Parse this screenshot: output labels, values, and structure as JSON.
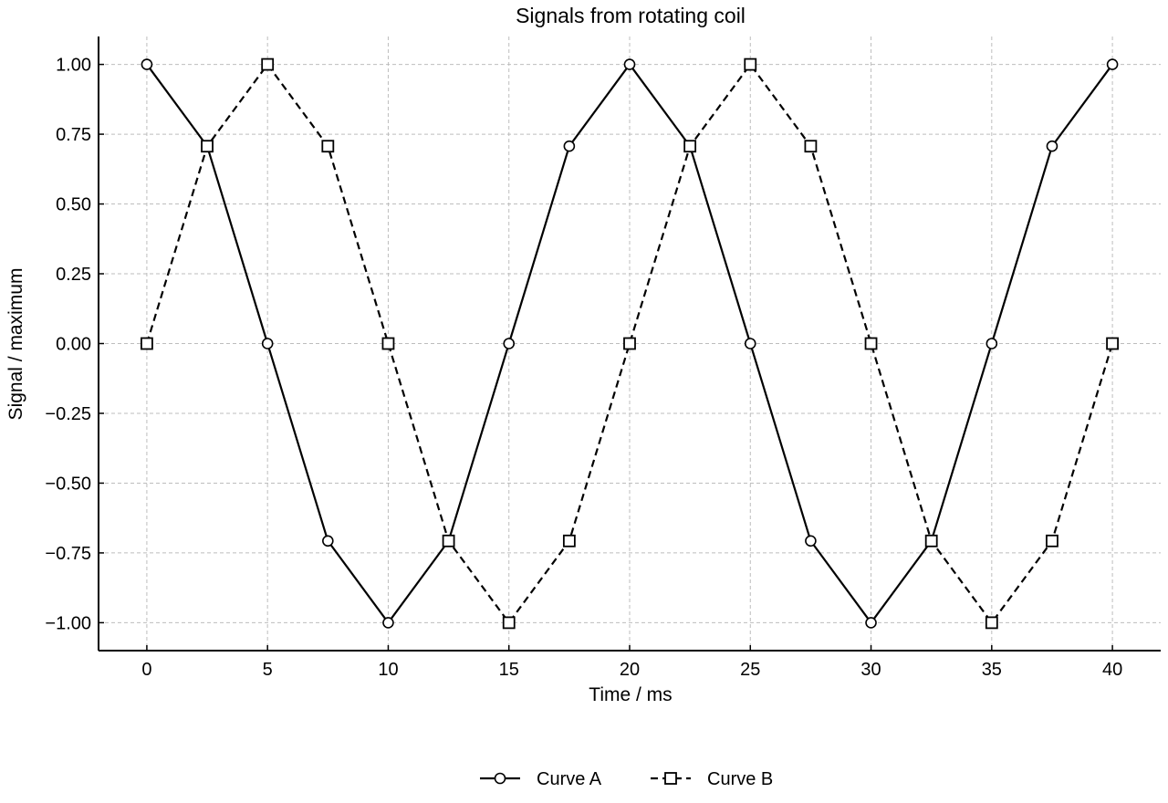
{
  "chart_data": {
    "type": "line",
    "title": "Signals from rotating coil",
    "xlabel": "Time / ms",
    "ylabel": "Signal / maximum",
    "xlim": [
      -2,
      42
    ],
    "ylim": [
      -1.1,
      1.1
    ],
    "xticks": [
      0,
      5,
      10,
      15,
      20,
      25,
      30,
      35,
      40
    ],
    "xtick_labels": [
      "0",
      "5",
      "10",
      "15",
      "20",
      "25",
      "30",
      "35",
      "40"
    ],
    "yticks": [
      1.0,
      0.75,
      0.5,
      0.25,
      0.0,
      -0.25,
      -0.5,
      -0.75,
      -1.0
    ],
    "ytick_labels": [
      "1.00",
      "0.75",
      "0.50",
      "0.25",
      "0.00",
      "−0.25",
      "−0.50",
      "−0.75",
      "−1.00"
    ],
    "grid": true,
    "legend_position": "bottom-center",
    "x": [
      0,
      2.5,
      5,
      7.5,
      10,
      12.5,
      15,
      17.5,
      20,
      22.5,
      25,
      27.5,
      30,
      32.5,
      35,
      37.5,
      40
    ],
    "series": [
      {
        "name": "Curve A",
        "values": [
          1.0,
          0.707,
          0.0,
          -0.707,
          -1.0,
          -0.707,
          0.0,
          0.707,
          1.0,
          0.707,
          0.0,
          -0.707,
          -1.0,
          -0.707,
          0.0,
          0.707,
          1.0
        ],
        "marker": "circle",
        "line_style": "solid",
        "color": "#000000"
      },
      {
        "name": "Curve B",
        "values": [
          0.0,
          0.707,
          1.0,
          0.707,
          0.0,
          -0.707,
          -1.0,
          -0.707,
          0.0,
          0.707,
          1.0,
          0.707,
          0.0,
          -0.707,
          -1.0,
          -0.707,
          0.0
        ],
        "marker": "square",
        "line_style": "dashed",
        "color": "#000000"
      }
    ]
  }
}
